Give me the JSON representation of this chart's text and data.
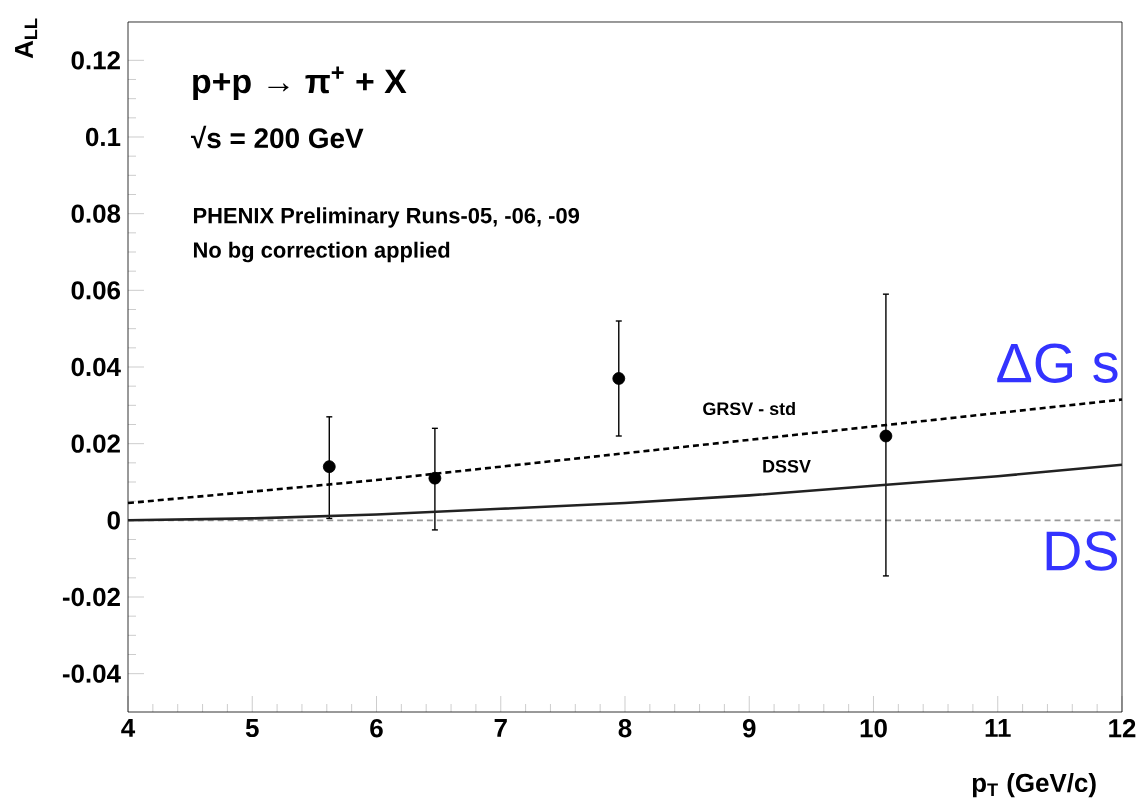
{
  "chart_data": {
    "type": "scatter",
    "title": "p+p → π$^{+}$ + X",
    "subtitle": "√s = 200 GeV",
    "xlabel": "p$_{T}$ (GeV/c)",
    "ylabel": "A$_{LL}$",
    "annotations": [
      "PHENIX Preliminary Runs-05, -06, -09",
      "No bg correction applied",
      "ΔG s",
      "DS"
    ],
    "xlim": [
      4,
      12
    ],
    "ylim": [
      -0.05,
      0.13
    ],
    "xticks": [
      4,
      5,
      6,
      7,
      8,
      9,
      10,
      11,
      12
    ],
    "yticks": [
      -0.04,
      -0.02,
      0,
      0.02,
      0.04,
      0.06,
      0.08,
      0.1,
      0.12
    ],
    "ref_lines": [
      {
        "axis": "y",
        "value": 0,
        "color": "#999999",
        "line_style": "dashed"
      }
    ],
    "series": [
      {
        "type": "scatter",
        "marker": "circle",
        "color": "#000000",
        "x": [
          5.62,
          6.47,
          7.95,
          10.1
        ],
        "values": [
          0.014,
          0.011,
          0.037,
          0.022
        ],
        "errors": [
          [
            0.0005,
            0.027
          ],
          [
            -0.0025,
            0.024
          ],
          [
            0.022,
            0.052
          ],
          [
            -0.0145,
            0.059
          ]
        ]
      },
      {
        "type": "line",
        "name": "GRSV - std",
        "color": "#000000",
        "line_style": "dashed",
        "marker": "none",
        "x": [
          4,
          5,
          6,
          7,
          8,
          9,
          10,
          11,
          12
        ],
        "values": [
          0.0045,
          0.0075,
          0.0105,
          0.014,
          0.0175,
          0.021,
          0.0245,
          0.028,
          0.0315
        ]
      },
      {
        "type": "line",
        "name": "DSSV",
        "color": "#222222",
        "line_style": "solid",
        "marker": "none",
        "x": [
          4,
          5,
          6,
          7,
          8,
          9,
          10,
          11,
          12
        ],
        "values": [
          0,
          0.0005,
          0.0015,
          0.003,
          0.0045,
          0.0065,
          0.009,
          0.0115,
          0.0145
        ]
      }
    ]
  }
}
